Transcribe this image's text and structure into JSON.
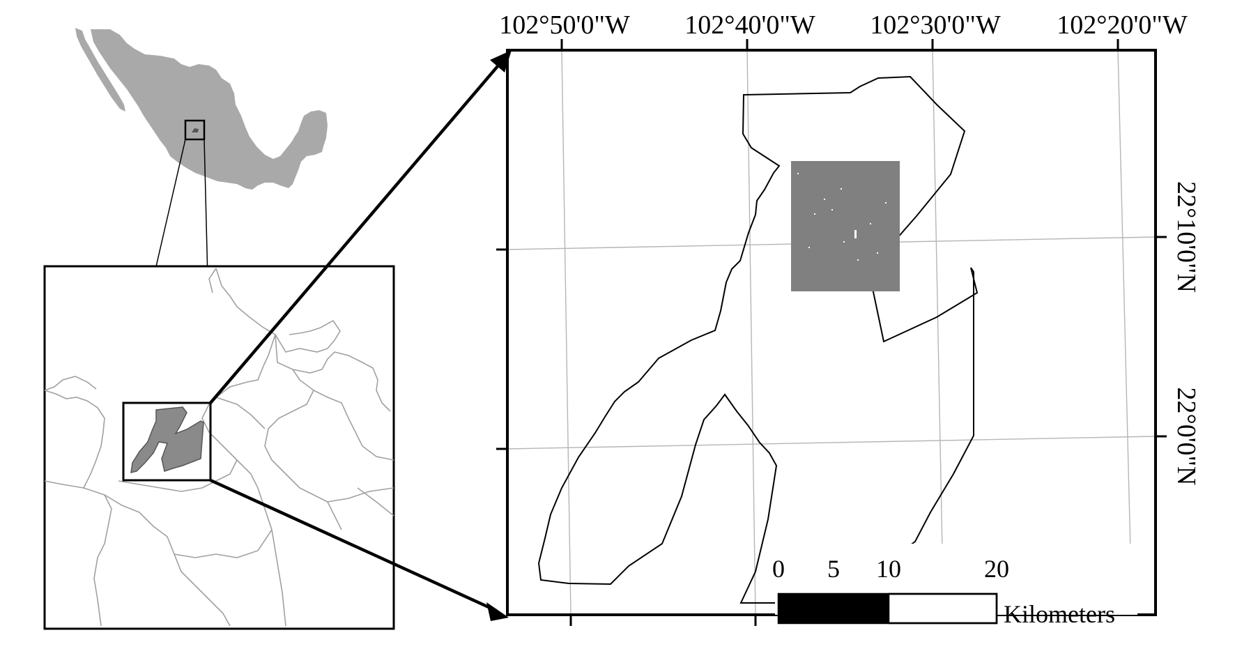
{
  "main_map": {
    "top_longitude_labels": [
      "102°50'0\"W",
      "102°40'0\"W",
      "102°30'0\"W",
      "102°20'0\"W"
    ],
    "right_latitude_labels": [
      "22°10'0\"N",
      "22°0'0\"N"
    ]
  },
  "scale_bar": {
    "tick_labels": [
      "0",
      "5",
      "10",
      "20"
    ],
    "unit": "Kilometers"
  },
  "colors": {
    "frame": "#000000",
    "country_fill": "#a9a9a9",
    "study_area_fill": "#808080",
    "boundary_lines": "#a0a0a0",
    "graticule": "#b5b5b5"
  }
}
